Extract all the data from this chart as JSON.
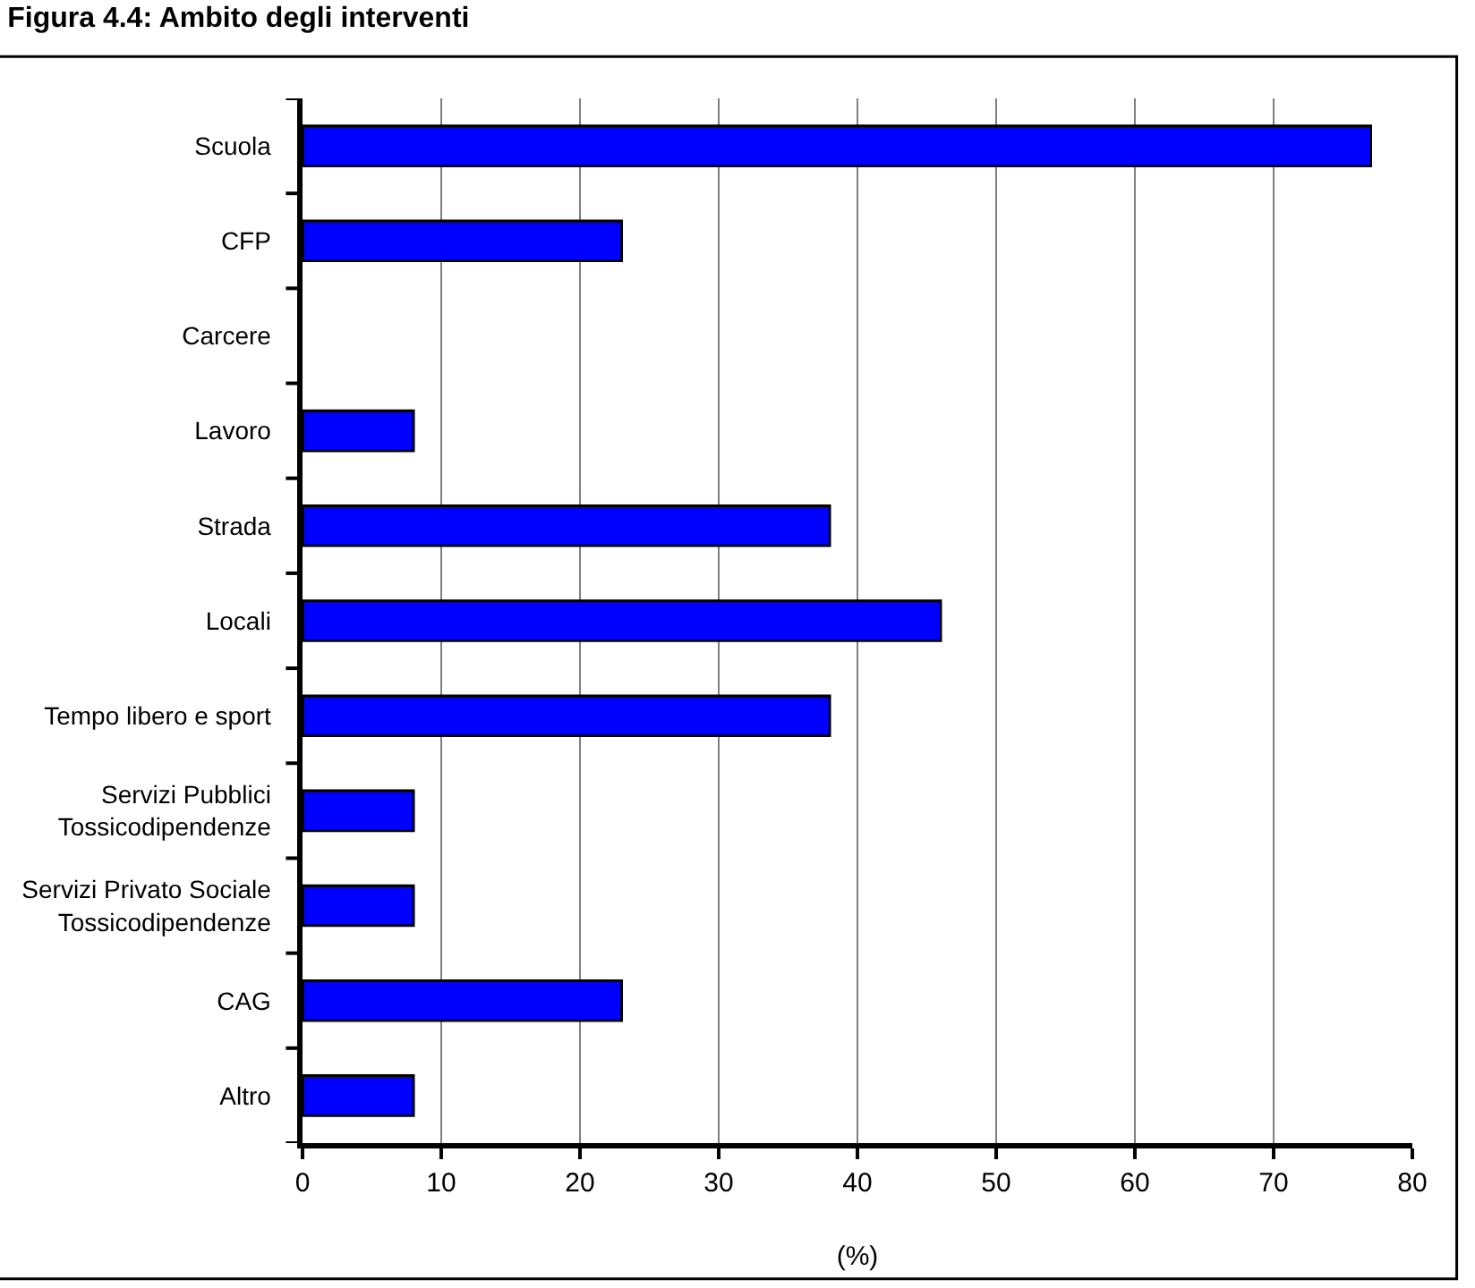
{
  "chart_data": {
    "type": "bar",
    "orientation": "horizontal",
    "title": "Figura 4.4: Ambito degli interventi",
    "xlabel": "(%)",
    "categories": [
      "Scuola",
      "CFP",
      "Carcere",
      "Lavoro",
      "Strada",
      "Locali",
      "Tempo libero e sport",
      "Servizi Pubblici\nTossicodipendenze",
      "Servizi Privato Sociale\nTossicodipendenze",
      "CAG",
      "Altro"
    ],
    "values": [
      77,
      23,
      0,
      8,
      38,
      46,
      38,
      8,
      8,
      23,
      8
    ],
    "color": "#0000ff",
    "xlim": [
      0,
      80
    ],
    "xticks": [
      0,
      10,
      20,
      30,
      40,
      50,
      60,
      70,
      80
    ],
    "grid": "x"
  }
}
